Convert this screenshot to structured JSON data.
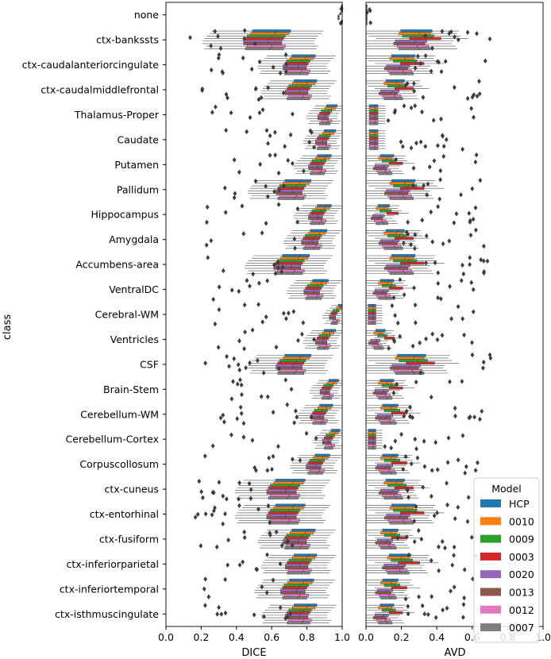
{
  "chart_data": [
    {
      "type": "boxplot",
      "panel": "left",
      "xlabel": "DICE",
      "ylabel": "class",
      "xlim": [
        0.0,
        1.0
      ],
      "xticks": [
        "0.0",
        "0.2",
        "0.4",
        "0.6",
        "0.8",
        "1.0"
      ],
      "categories": [
        "none",
        "ctx-bankssts",
        "ctx-caudalanteriorcingulate",
        "ctx-caudalmiddlefrontal",
        "Thalamus-Proper",
        "Caudate",
        "Putamen",
        "Pallidum",
        "Hippocampus",
        "Amygdala",
        "Accumbens-area",
        "VentralDC",
        "Cerebral-WM",
        "Ventricles",
        "CSF",
        "Brain-Stem",
        "Cerebellum-WM",
        "Cerebellum-Cortex",
        "Corpuscollosum",
        "ctx-cuneus",
        "ctx-entorhinal",
        "ctx-fusiform",
        "ctx-inferiorparietal",
        "ctx-inferiortemporal",
        "ctx-isthmuscingulate"
      ],
      "series_names": [
        "HCP",
        "0010",
        "0009",
        "0003",
        "0020",
        "0013",
        "0012",
        "0007"
      ],
      "median_by_class": [
        1.0,
        0.6,
        0.77,
        0.78,
        0.92,
        0.91,
        0.88,
        0.74,
        0.88,
        0.85,
        0.73,
        0.86,
        0.97,
        0.91,
        0.74,
        0.93,
        0.89,
        0.94,
        0.87,
        0.7,
        0.7,
        0.77,
        0.78,
        0.76,
        0.78
      ],
      "series_offsets": [
        0.03,
        0.02,
        0.0,
        -0.01,
        -0.02,
        -0.02,
        0.0,
        -0.01
      ]
    },
    {
      "type": "boxplot",
      "panel": "right",
      "xlabel": "AVD",
      "xlim": [
        0.0,
        1.0
      ],
      "xticks": [
        "0.0",
        "0.2",
        "0.4",
        "0.6",
        "0.8",
        "1.0"
      ],
      "median_by_class": [
        0.0,
        0.28,
        0.2,
        0.15,
        0.05,
        0.05,
        0.1,
        0.2,
        0.08,
        0.15,
        0.2,
        0.1,
        0.04,
        0.06,
        0.25,
        0.1,
        0.12,
        0.04,
        0.12,
        0.15,
        0.2,
        0.12,
        0.18,
        0.12,
        0.1
      ],
      "series_offsets": [
        0.03,
        0.02,
        0.04,
        0.08,
        0.0,
        -0.01,
        0.01,
        0.02
      ]
    }
  ],
  "legend": {
    "title": "Model",
    "placement": "lower-right",
    "entries": [
      {
        "label": "HCP",
        "color": "#1f77b4"
      },
      {
        "label": "0010",
        "color": "#ff7f0e"
      },
      {
        "label": "0009",
        "color": "#2ca02c"
      },
      {
        "label": "0003",
        "color": "#d62728"
      },
      {
        "label": "0020",
        "color": "#9467bd"
      },
      {
        "label": "0013",
        "color": "#8c564b"
      },
      {
        "label": "0012",
        "color": "#e377c2"
      },
      {
        "label": "0007",
        "color": "#7f7f7f"
      }
    ]
  }
}
